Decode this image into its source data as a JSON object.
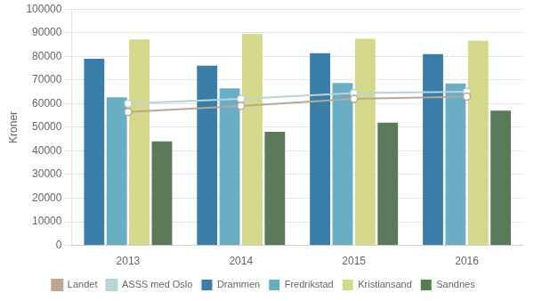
{
  "chart_data": {
    "type": "bar",
    "categories": [
      "2013",
      "2014",
      "2015",
      "2016"
    ],
    "series": [
      {
        "name": "Drammen",
        "type": "bar",
        "color": "#3a7ea8",
        "values": [
          78961,
          76025,
          81319,
          80952
        ]
      },
      {
        "name": "Fredrikstad",
        "type": "bar",
        "color": "#6aaec6",
        "values": [
          62719,
          66418,
          68708,
          68544
        ]
      },
      {
        "name": "Kristiansand",
        "type": "bar",
        "color": "#d4d98a",
        "values": [
          87183,
          89472,
          87461,
          86566
        ]
      },
      {
        "name": "Sandnes",
        "type": "bar",
        "color": "#5a7a5a",
        "values": [
          43982,
          48051,
          51930,
          57000
        ]
      },
      {
        "name": "Landet",
        "type": "line",
        "color": "#b5a898",
        "marker": "circle",
        "line_style": "solid",
        "values": [
          56500,
          59000,
          62000,
          63000
        ]
      },
      {
        "name": "ASSS med Oslo",
        "type": "line",
        "color": "#b8d4d4",
        "marker": "circle",
        "line_style": "solid",
        "values": [
          60000,
          62000,
          64500,
          65000
        ]
      }
    ],
    "ylabel": "Kroner",
    "ylim": [
      0,
      100000
    ],
    "yticks": [
      0,
      10000,
      20000,
      30000,
      40000,
      50000,
      60000,
      70000,
      80000,
      90000,
      100000
    ],
    "grid": true,
    "legend": "bottom"
  }
}
